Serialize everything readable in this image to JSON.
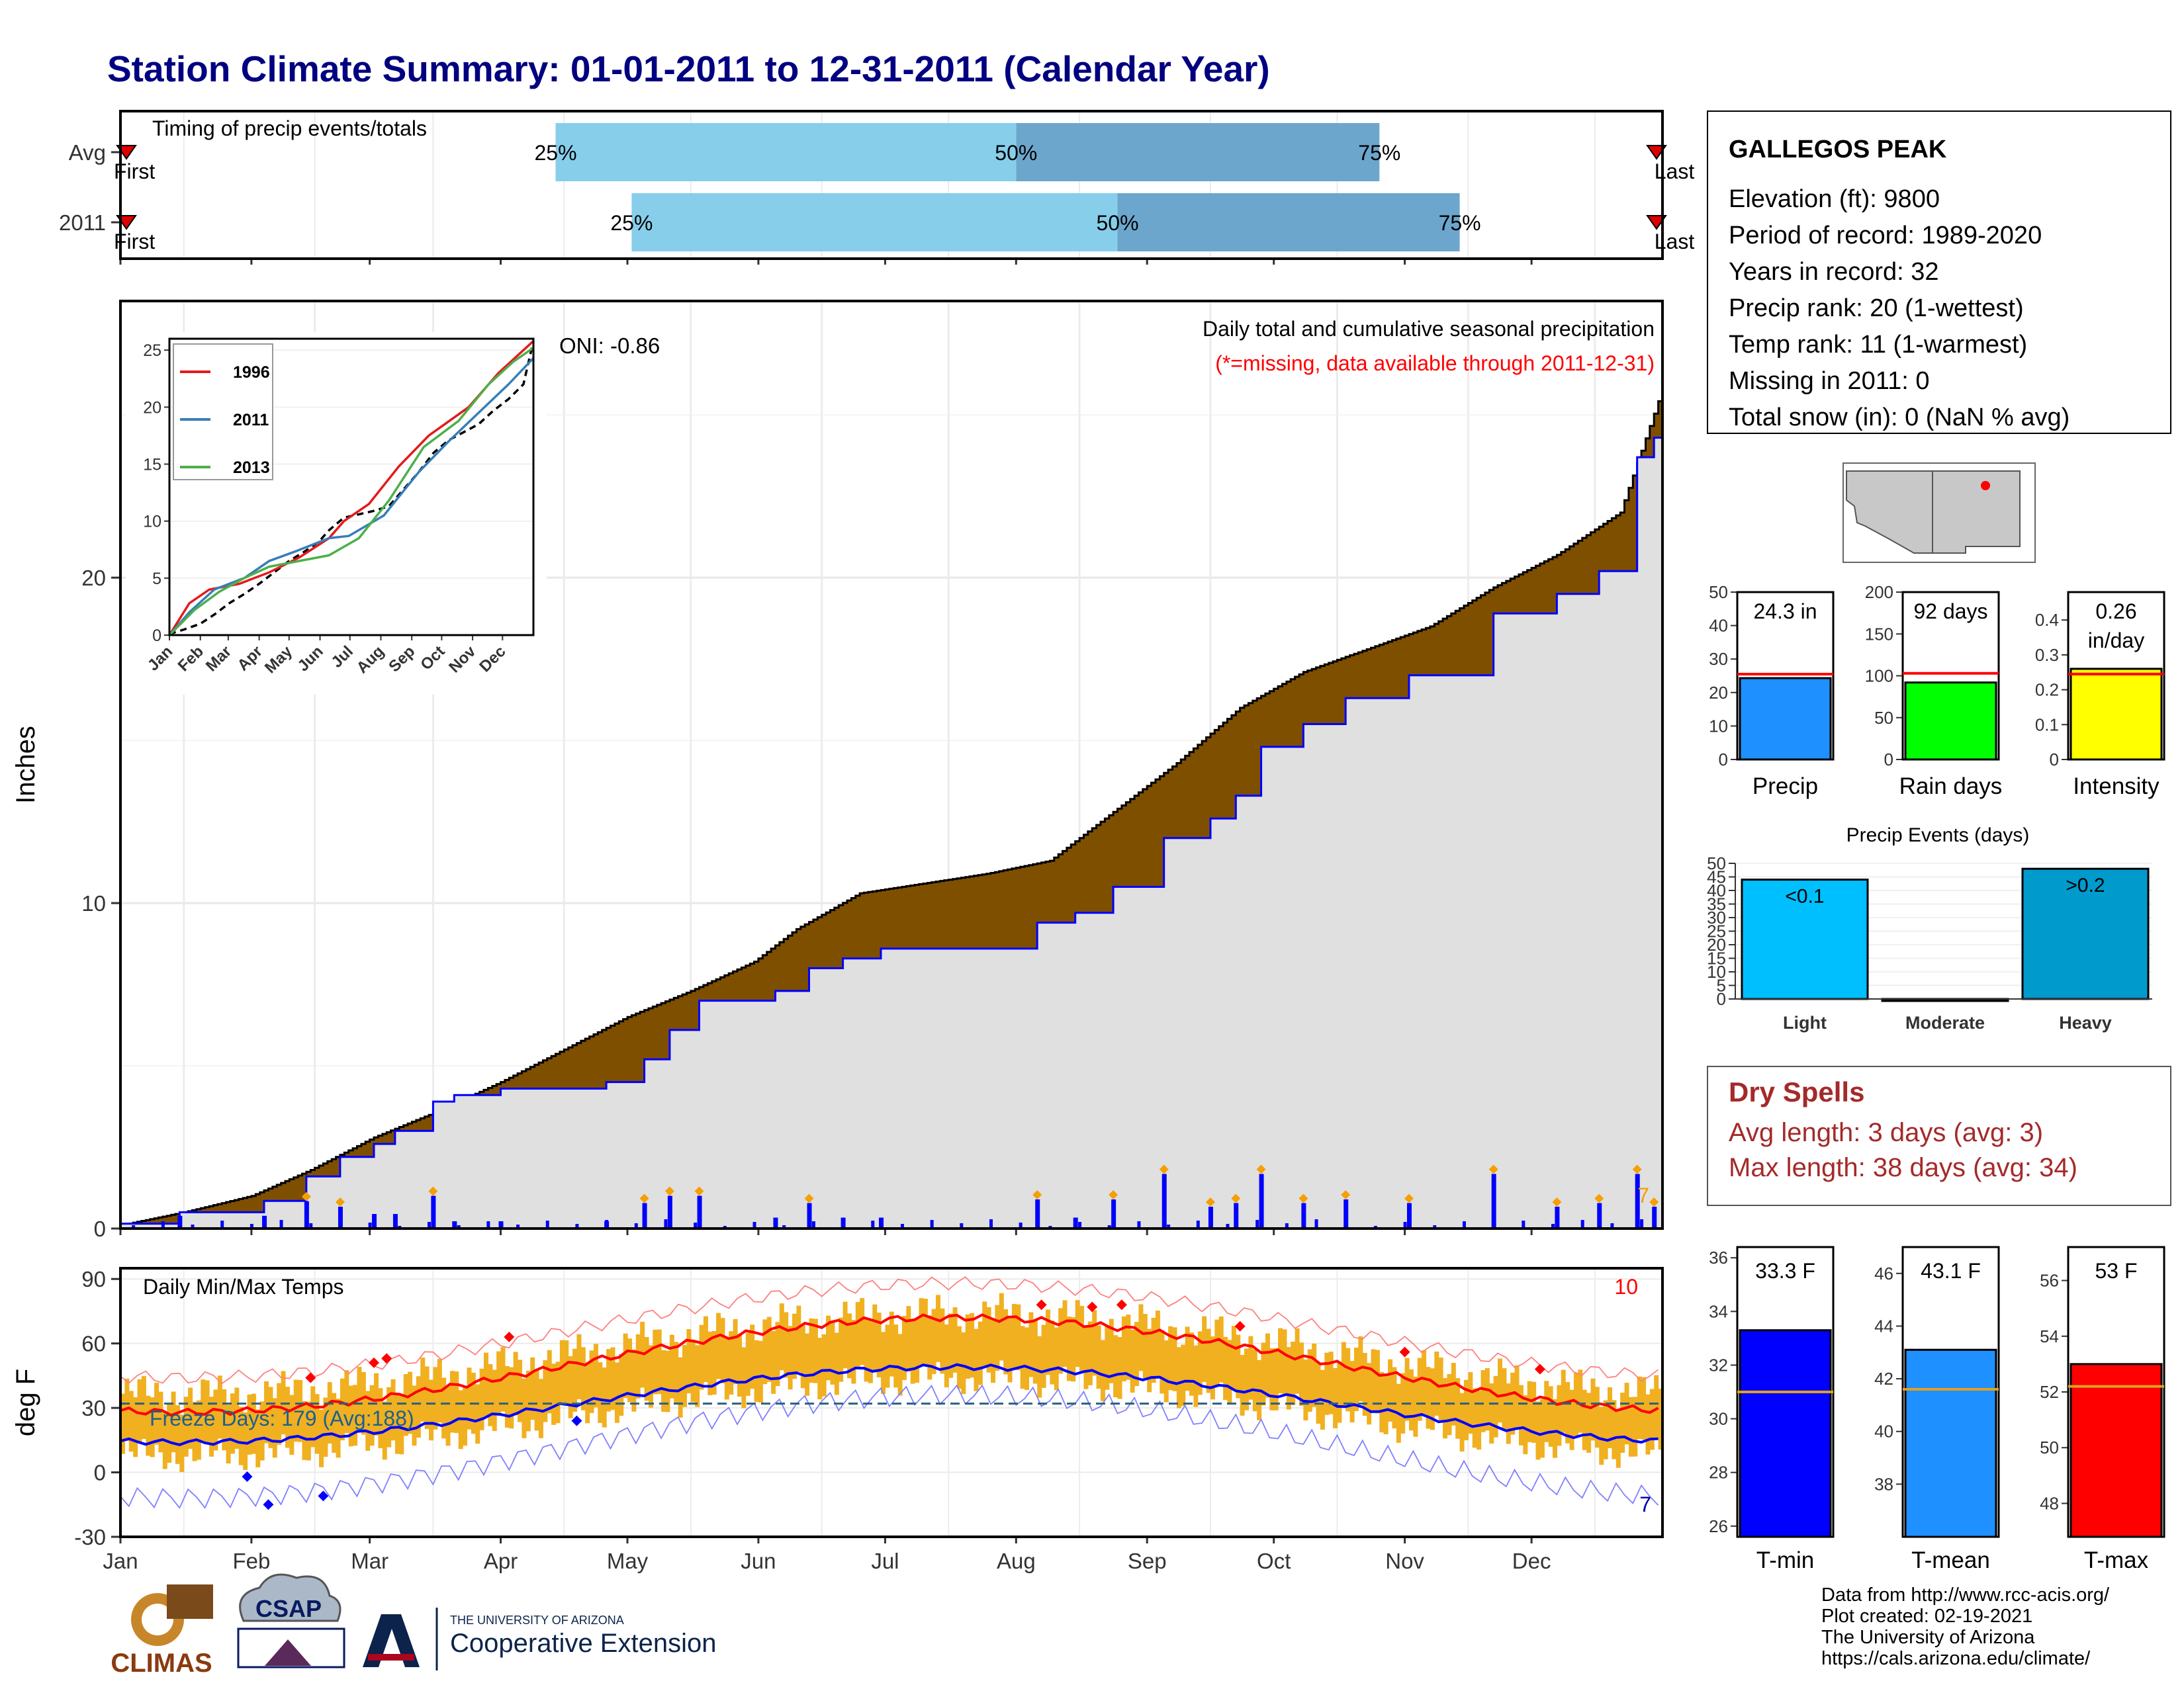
{
  "title": "Station Climate Summary: 01-01-2011 to 12-31-2011 (Calendar Year)",
  "colors": {
    "title": "#000080",
    "precip_avg_fill": "#7f4f00",
    "precip_2011_line": "#0000ff",
    "precip_area": "#e0e0e0",
    "timing_light": "#87ceeb",
    "timing_dark": "#6ca6cd",
    "missing_red": "#ff0000",
    "temp_band": "#f0b020",
    "dry_spells": "#a52a2a"
  },
  "months": [
    "Jan",
    "Feb",
    "Mar",
    "Apr",
    "May",
    "Jun",
    "Jul",
    "Aug",
    "Sep",
    "Oct",
    "Nov",
    "Dec"
  ],
  "timing": {
    "title": "Timing of precip events/totals",
    "first_label": "First",
    "last_label": "Last",
    "rows": [
      {
        "label": "Avg",
        "p25": 103,
        "p50": 212,
        "p75": 298,
        "p25_label": "25%",
        "p50_label": "50%",
        "p75_label": "75%"
      },
      {
        "label": "2011",
        "p25": 121,
        "p50": 236,
        "p75": 317,
        "p25_label": "25%",
        "p50_label": "50%",
        "p75_label": "75%"
      }
    ]
  },
  "precip": {
    "ylabel": "Inches",
    "yticks": [
      0,
      10,
      20
    ],
    "ylim": [
      0,
      28.5
    ],
    "oni": "ONI: -0.86",
    "caption": "Daily total and cumulative seasonal precipitation",
    "missing_note": "(*=missing, data available through 2011-12-31)",
    "extreme_count": "7"
  },
  "inset": {
    "yticks": [
      0,
      5,
      10,
      15,
      20,
      25
    ],
    "xticks": [
      "Jan",
      "Feb",
      "Mar",
      "Apr",
      "May",
      "Jun",
      "Jul",
      "Aug",
      "Sep",
      "Oct",
      "Nov",
      "Dec"
    ],
    "legend": [
      {
        "name": "1996",
        "color": "#e41a1c"
      },
      {
        "name": "2011",
        "color": "#377eb8"
      },
      {
        "name": "2013",
        "color": "#4daf4a"
      }
    ]
  },
  "temps": {
    "ylabel": "deg F",
    "title": "Daily Min/Max Temps",
    "yticks": [
      90,
      60,
      30,
      0,
      -30
    ],
    "freeze_days": "Freeze Days: 179 (Avg:188)",
    "max_record_count": "10",
    "min_record_count": "7"
  },
  "station": {
    "name": "GALLEGOS PEAK",
    "lines": [
      "Elevation (ft): 9800",
      "Period of record: 1989-2020",
      "Years in record: 32",
      "Precip rank: 20 (1-wettest)",
      "Temp rank: 11 (1-warmest)",
      "Missing in 2011: 0",
      "Total snow (in): 0 (NaN % avg)"
    ]
  },
  "summary_bars": [
    {
      "name": "Precip",
      "value_label": "24.3 in",
      "value": 24.3,
      "avg": 25.5,
      "ymax": 50,
      "ticks": [
        0,
        10,
        20,
        30,
        40,
        50
      ],
      "color": "#1e90ff"
    },
    {
      "name": "Rain days",
      "value_label": "92 days",
      "value": 92,
      "avg": 103,
      "ymax": 200,
      "ticks": [
        0,
        50,
        100,
        150,
        200
      ],
      "color": "#00ff00"
    },
    {
      "name": "Intensity",
      "value_label": "0.26 in/day",
      "value": 0.26,
      "avg": 0.245,
      "ymax": 0.48,
      "ticks": [
        0.0,
        0.1,
        0.2,
        0.3,
        0.4
      ],
      "color": "#ffff00"
    }
  ],
  "precip_events": {
    "title": "Precip Events (days)",
    "ticks": [
      0,
      5,
      10,
      15,
      20,
      25,
      30,
      35,
      40,
      45,
      50
    ],
    "bars": [
      {
        "name": "Light",
        "label": "<0.1",
        "value": 44,
        "color": "#00bfff"
      },
      {
        "name": "Moderate",
        "label": "",
        "value": 0,
        "color": "#00bfff"
      },
      {
        "name": "Heavy",
        "label": ">0.2",
        "value": 48,
        "color": "#009acd"
      }
    ]
  },
  "dry_spells": {
    "title": "Dry Spells",
    "avg_length": "Avg length: 3 days (avg: 3)",
    "max_length": "Max length: 38 days (avg: 34)"
  },
  "temp_bars": [
    {
      "name": "T-min",
      "value_label": "33.3 F",
      "value": 33.3,
      "avg": 31.0,
      "ymin": 25.6,
      "ymax": 36.4,
      "ticks": [
        26,
        28,
        30,
        32,
        34,
        36
      ],
      "color": "#0000ff"
    },
    {
      "name": "T-mean",
      "value_label": "43.1 F",
      "value": 43.1,
      "avg": 41.6,
      "ymin": 36.0,
      "ymax": 47.0,
      "ticks": [
        38,
        40,
        42,
        44,
        46
      ],
      "color": "#1e90ff"
    },
    {
      "name": "T-max",
      "value_label": "53 F",
      "value": 53.0,
      "avg": 52.2,
      "ymin": 46.8,
      "ymax": 57.2,
      "ticks": [
        48,
        50,
        52,
        54,
        56
      ],
      "color": "#ff0000"
    }
  ],
  "footer": {
    "credits": [
      "Data from http://www.rcc-acis.org/",
      "Plot created: 02-19-2021",
      "The University of Arizona",
      "https://cals.arizona.edu/climate/"
    ],
    "logo_climas": "CLIMAS",
    "logo_csap": "CSAP",
    "logo_ua_small": "THE UNIVERSITY OF ARIZONA",
    "logo_ua_large": "Cooperative Extension"
  }
}
